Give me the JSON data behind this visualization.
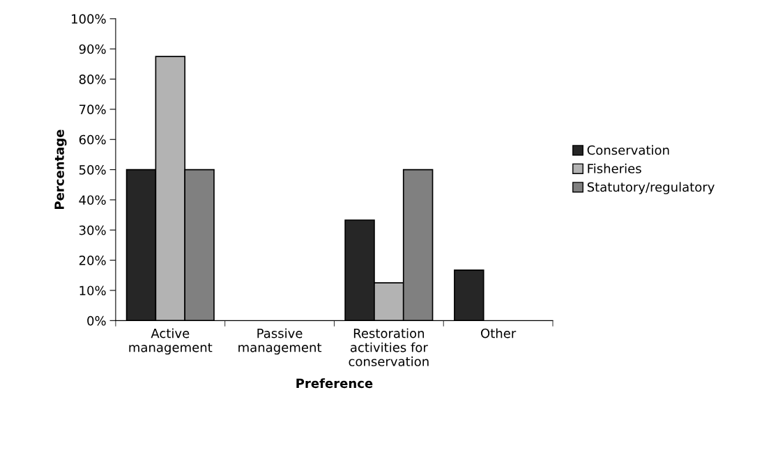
{
  "chart_data": {
    "type": "bar",
    "xlabel": "Preference",
    "ylabel": "Percentage",
    "categories": [
      "Active\nmanagement",
      "Passive\nmanagement",
      "Restoration\nactivities for\nconservation",
      "Other"
    ],
    "series": [
      {
        "name": "Conservation",
        "color": "#262626",
        "values": [
          50,
          0,
          33.3,
          16.7
        ]
      },
      {
        "name": "Fisheries",
        "color": "#b3b3b3",
        "values": [
          87.5,
          0,
          12.5,
          0
        ]
      },
      {
        "name": "Statutory/regulatory",
        "color": "#808080",
        "values": [
          50,
          0,
          50,
          0
        ]
      }
    ],
    "ylim": [
      0,
      100
    ],
    "yticks": [
      {
        "value": 0,
        "label": "0%"
      },
      {
        "value": 10,
        "label": "10%"
      },
      {
        "value": 20,
        "label": "20%"
      },
      {
        "value": 30,
        "label": "30%"
      },
      {
        "value": 40,
        "label": "40%"
      },
      {
        "value": 50,
        "label": "50%"
      },
      {
        "value": 60,
        "label": "60%"
      },
      {
        "value": 70,
        "label": "70%"
      },
      {
        "value": 80,
        "label": "80%"
      },
      {
        "value": 90,
        "label": "90%"
      },
      {
        "value": 100,
        "label": "100%"
      }
    ],
    "grid": false,
    "legend": "right"
  }
}
